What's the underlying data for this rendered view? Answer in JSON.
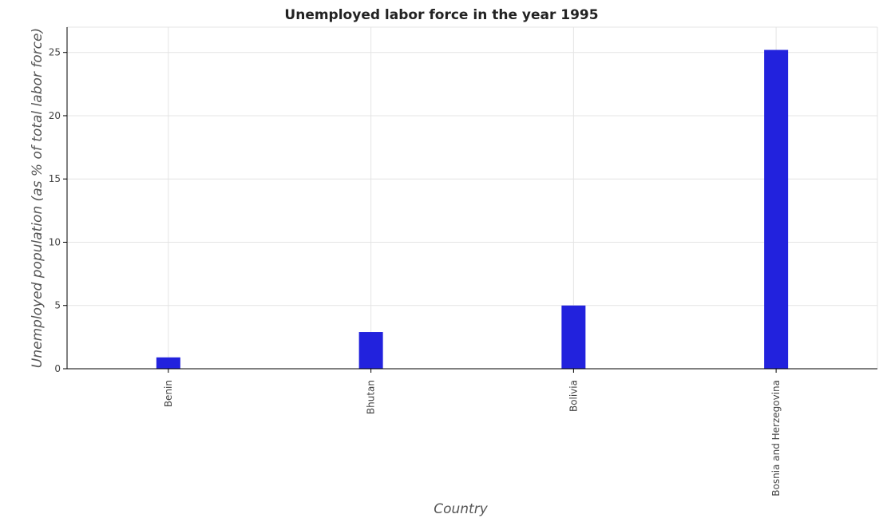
{
  "chart_data": {
    "type": "bar",
    "title": "Unemployed labor force in the year 1995",
    "xlabel": "Country",
    "ylabel": "Unemployed population (as % of total labor force)",
    "categories": [
      "Benin",
      "Bhutan",
      "Bolivia",
      "Bosnia and Herzegovina"
    ],
    "values": [
      0.9,
      2.9,
      5.0,
      25.2
    ],
    "ylim": [
      0,
      27
    ],
    "yticks": [
      0,
      5,
      10,
      15,
      20,
      25
    ],
    "ytick_labels": [
      "0",
      "5",
      "10",
      "15",
      "20",
      "25"
    ],
    "grid": true,
    "bar_color": "#2222dd"
  }
}
